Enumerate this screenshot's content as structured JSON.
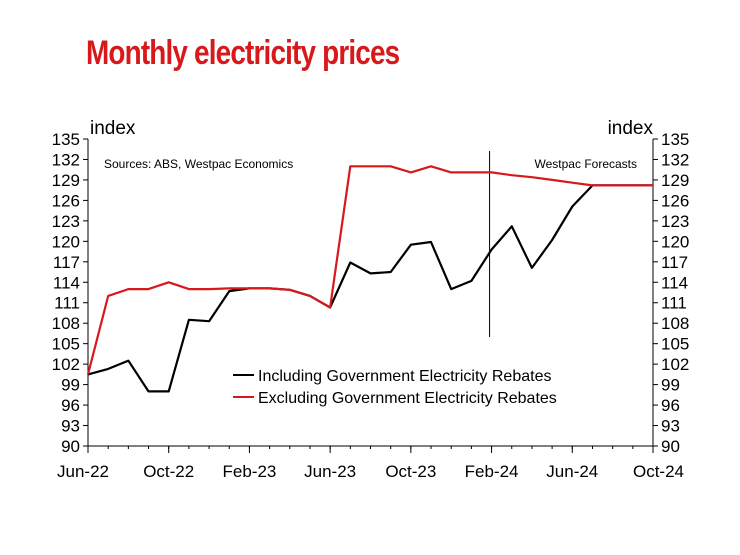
{
  "page": {
    "title": "Monthly electricity prices"
  },
  "colors": {
    "title": "#d7191c",
    "including": "#000000",
    "excluding": "#d7191c",
    "axis": "#000000"
  },
  "chart_data": {
    "type": "line",
    "title": "Monthly electricity prices",
    "y_left_label": "index",
    "y_right_label": "index",
    "source": "Sources: ABS, Westpac Economics",
    "forecast_label": "Westpac Forecasts",
    "forecast_start_index": 20,
    "ylim": [
      90,
      135
    ],
    "yticks": [
      90,
      93,
      96,
      99,
      102,
      105,
      108,
      111,
      114,
      117,
      120,
      123,
      126,
      129,
      132,
      135
    ],
    "xticks": [
      {
        "index": 0,
        "label": "Jun-22"
      },
      {
        "index": 4,
        "label": "Oct-22"
      },
      {
        "index": 8,
        "label": "Feb-23"
      },
      {
        "index": 12,
        "label": "Jun-23"
      },
      {
        "index": 16,
        "label": "Oct-23"
      },
      {
        "index": 20,
        "label": "Feb-24"
      },
      {
        "index": 24,
        "label": "Jun-24"
      },
      {
        "index": 28,
        "label": "Oct-24"
      }
    ],
    "x": [
      "Jun-22",
      "Jul-22",
      "Aug-22",
      "Sep-22",
      "Oct-22",
      "Nov-22",
      "Dec-22",
      "Jan-23",
      "Feb-23",
      "Mar-23",
      "Apr-23",
      "May-23",
      "Jun-23",
      "Jul-23",
      "Aug-23",
      "Sep-23",
      "Oct-23",
      "Nov-23",
      "Dec-23",
      "Jan-24",
      "Feb-24",
      "Mar-24",
      "Apr-24",
      "May-24",
      "Jun-24",
      "Jul-24",
      "Aug-24",
      "Sep-24",
      "Oct-24"
    ],
    "series": [
      {
        "name": "Including Government Electricity Rebates",
        "color": "#000000",
        "values": [
          100.5,
          101.3,
          102.5,
          98.0,
          98.0,
          108.5,
          108.3,
          112.7,
          113.1,
          113.1,
          112.9,
          112.0,
          110.3,
          116.9,
          115.3,
          115.5,
          119.5,
          119.9,
          113.0,
          114.2,
          118.8,
          122.2,
          116.1,
          120.2,
          125.1,
          128.2,
          128.2,
          128.2,
          128.2
        ]
      },
      {
        "name": "Excluding Government Electricity Rebates",
        "color": "#d7191c",
        "values": [
          100.5,
          112.0,
          113.0,
          113.0,
          114.0,
          113.0,
          113.0,
          113.1,
          113.1,
          113.1,
          112.9,
          112.0,
          110.3,
          131.0,
          131.0,
          131.0,
          130.1,
          131.0,
          130.1,
          130.1,
          130.1,
          129.7,
          129.4,
          129.0,
          128.6,
          128.2,
          128.2,
          128.2,
          128.2
        ]
      }
    ]
  }
}
